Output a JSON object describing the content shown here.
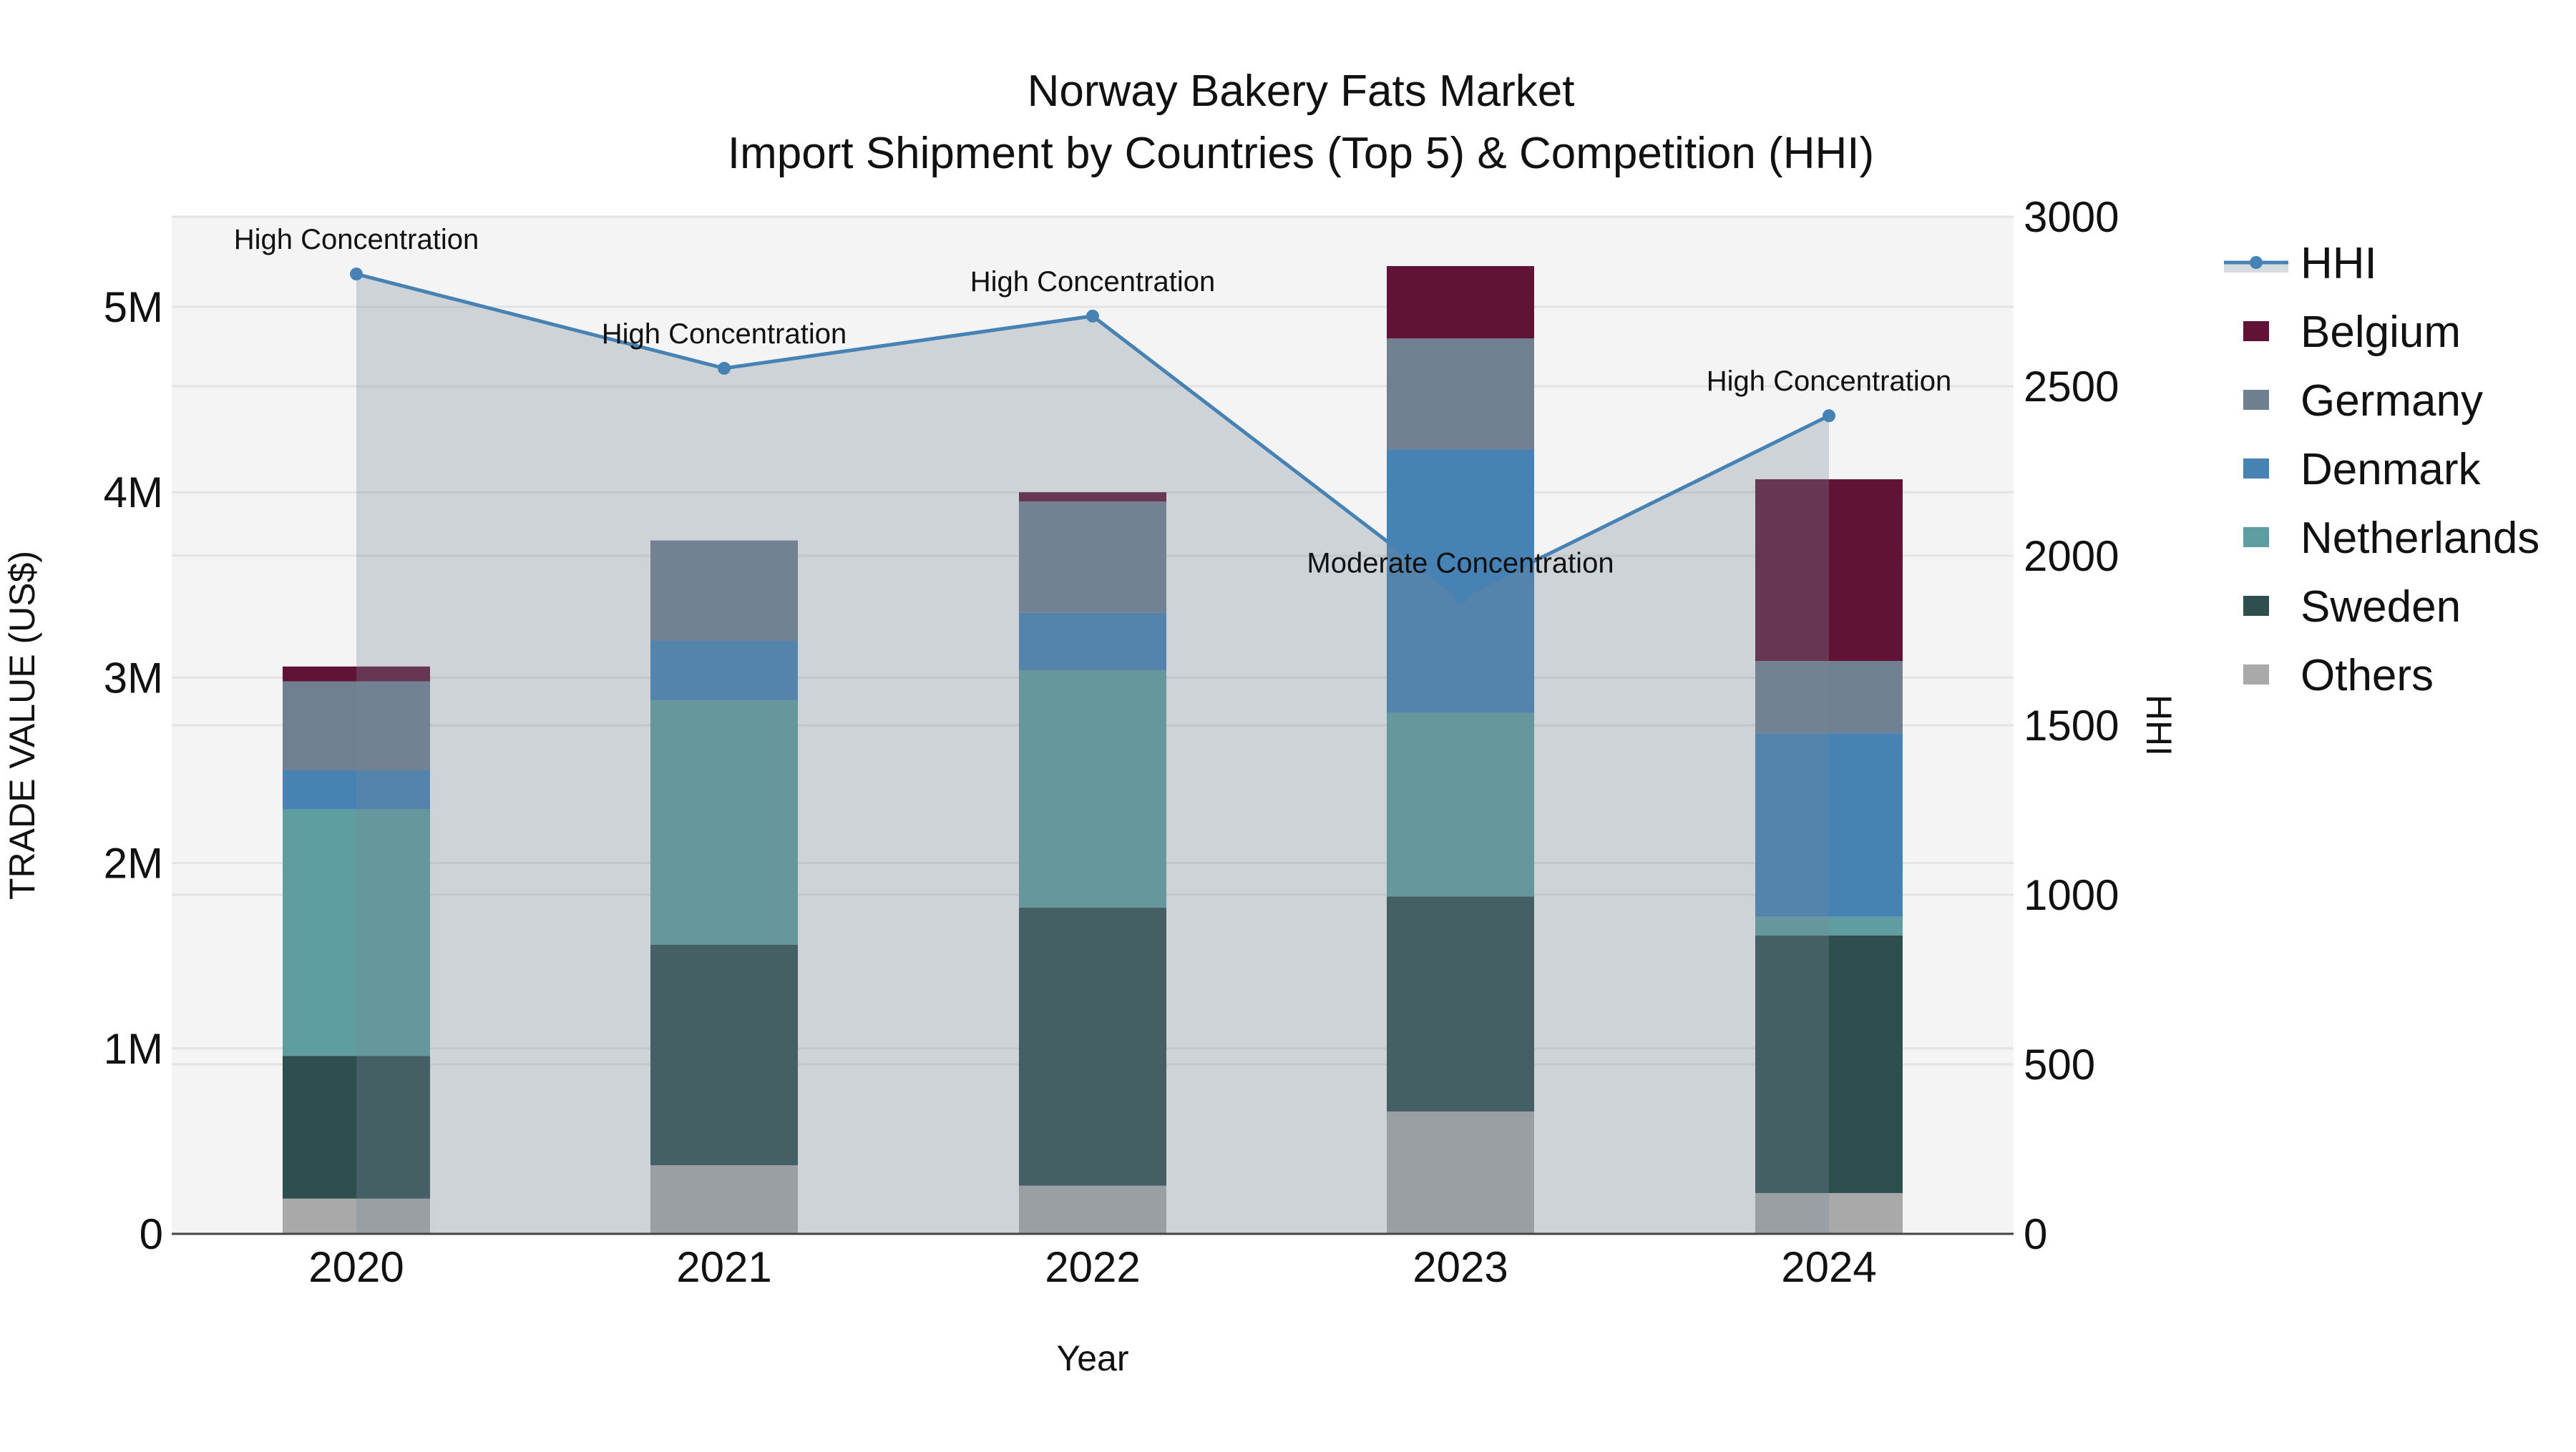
{
  "title": {
    "line1": "Norway Bakery Fats Market",
    "line2": "Import Shipment by Countries (Top 5) & Competition (HHI)"
  },
  "axes": {
    "x_title": "Year",
    "y_left_title": "TRADE VALUE (US$)",
    "y_right_title": "HHI",
    "y_left_ticks": [
      "0",
      "1M",
      "2M",
      "3M",
      "4M",
      "5M"
    ],
    "y_right_ticks": [
      "0",
      "500",
      "1000",
      "1500",
      "2000",
      "2500",
      "3000"
    ],
    "x_ticks": [
      "2020",
      "2021",
      "2022",
      "2023",
      "2024"
    ]
  },
  "legend": {
    "items": [
      {
        "label": "HHI",
        "color": "#4682B4",
        "type": "line"
      },
      {
        "label": "Belgium",
        "color": "#611336",
        "type": "bar"
      },
      {
        "label": "Germany",
        "color": "#708090",
        "type": "bar"
      },
      {
        "label": "Denmark",
        "color": "#4682B4",
        "type": "bar"
      },
      {
        "label": "Netherlands",
        "color": "#5F9EA0",
        "type": "bar"
      },
      {
        "label": "Sweden",
        "color": "#2F4F4F",
        "type": "bar"
      },
      {
        "label": "Others",
        "color": "#A9A9A9",
        "type": "bar"
      }
    ]
  },
  "colors": {
    "plot_bg": "#F4F4F4",
    "grid": "#E3E3E3",
    "hhi_line": "#4682B4",
    "hhi_fill": "rgba(119,136,153,0.30)",
    "axis_line": "#444444"
  },
  "chart_data": {
    "type": "bar",
    "stacked": true,
    "title": "Norway Bakery Fats Market — Import Shipment by Countries (Top 5) & Competition (HHI)",
    "xlabel": "Year",
    "ylabel": "TRADE VALUE (US$)",
    "y2label": "HHI",
    "categories": [
      "2020",
      "2021",
      "2022",
      "2023",
      "2024"
    ],
    "ylim": [
      0,
      5500000
    ],
    "y2lim": [
      0,
      3000
    ],
    "grid": true,
    "legend_position": "right",
    "series": [
      {
        "name": "Others",
        "color": "#A9A9A9",
        "values": [
          190000,
          370000,
          260000,
          660000,
          220000
        ]
      },
      {
        "name": "Sweden",
        "color": "#2F4F4F",
        "values": [
          770000,
          1190000,
          1500000,
          1160000,
          1390000
        ]
      },
      {
        "name": "Netherlands",
        "color": "#5F9EA0",
        "values": [
          1330000,
          1320000,
          1280000,
          990000,
          100000
        ]
      },
      {
        "name": "Denmark",
        "color": "#4682B4",
        "values": [
          210000,
          320000,
          310000,
          1420000,
          990000
        ]
      },
      {
        "name": "Germany",
        "color": "#708090",
        "values": [
          480000,
          540000,
          600000,
          600000,
          390000
        ]
      },
      {
        "name": "Belgium",
        "color": "#611336",
        "values": [
          80000,
          0,
          50000,
          390000,
          980000
        ]
      }
    ],
    "line_series": {
      "name": "HHI",
      "axis": "y2",
      "type": "line+area",
      "color": "#4682B4",
      "values": [
        2831,
        2553,
        2707,
        1877,
        2413
      ],
      "annotations": [
        "High Concentration",
        "High Concentration",
        "High Concentration",
        "Moderate Concentration",
        "High Concentration"
      ]
    }
  }
}
